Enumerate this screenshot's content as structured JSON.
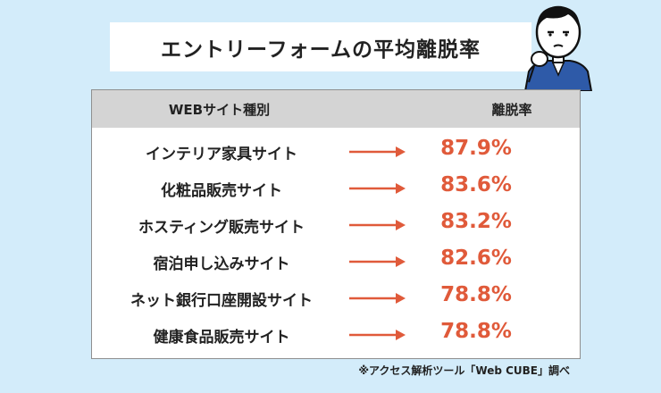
{
  "title": "エントリーフォームの平均離脱率",
  "table": {
    "header_site": "WEBサイト種別",
    "header_rate": "離脱率",
    "rows": [
      {
        "name": "インテリア家具サイト",
        "value": "87.9%"
      },
      {
        "name": "化粧品販売サイト",
        "value": "83.6%"
      },
      {
        "name": "ホスティング販売サイト",
        "value": "83.2%"
      },
      {
        "name": "宿泊申し込みサイト",
        "value": "82.6%"
      },
      {
        "name": "ネット銀行口座開設サイト",
        "value": "78.8%"
      },
      {
        "name": "健康食品販売サイト",
        "value": "78.8%"
      }
    ]
  },
  "footnote": "※アクセス解析ツール「Web CUBE」調べ",
  "colors": {
    "background": "#d3ecfa",
    "accent": "#e05a3a",
    "header_bg": "#d4d4d4"
  },
  "icons": {
    "character": "thinking-person-icon",
    "arrow": "right-arrow-icon"
  }
}
